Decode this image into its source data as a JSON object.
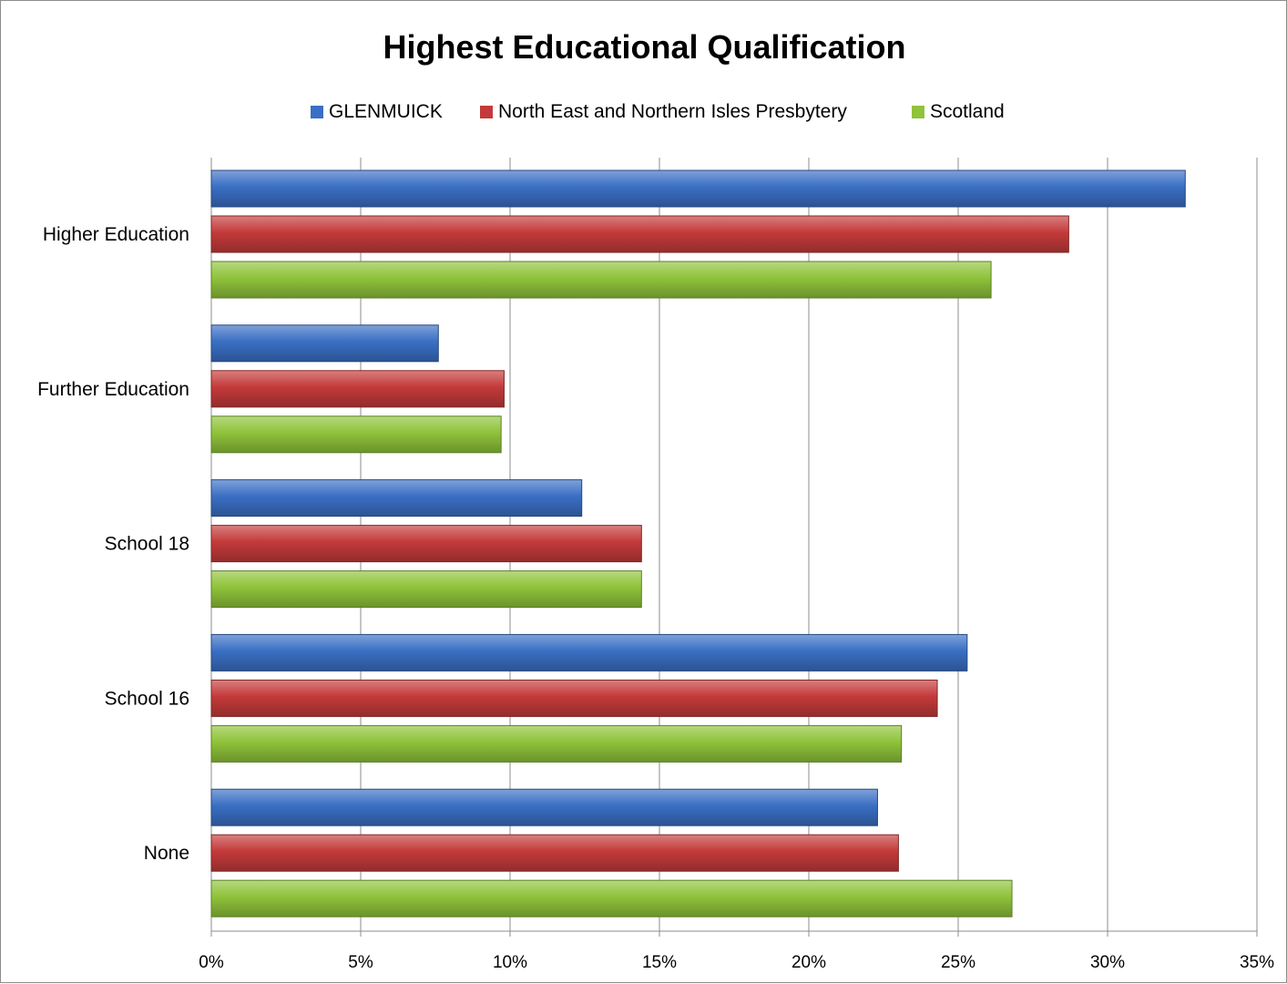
{
  "chart_data": {
    "type": "bar",
    "orientation": "horizontal",
    "title": "Highest Educational Qualification",
    "categories": [
      "Higher Education",
      "Further Education",
      "School 18",
      "School 16",
      "None"
    ],
    "series": [
      {
        "name": "GLENMUICK",
        "color": "#3a6fc4",
        "values": [
          32.6,
          7.6,
          12.4,
          25.3,
          22.3
        ]
      },
      {
        "name": "North East and Northern Isles Presbytery",
        "color": "#c43a3a",
        "values": [
          28.7,
          9.8,
          14.4,
          24.3,
          23.0
        ]
      },
      {
        "name": "Scotland",
        "color": "#8fc33a",
        "values": [
          26.1,
          9.7,
          14.4,
          23.1,
          26.8
        ]
      }
    ],
    "xlim": [
      0,
      35
    ],
    "xticks": [
      "0%",
      "5%",
      "10%",
      "15%",
      "20%",
      "25%",
      "30%",
      "35%"
    ],
    "grid": true,
    "legend_position": "top"
  }
}
